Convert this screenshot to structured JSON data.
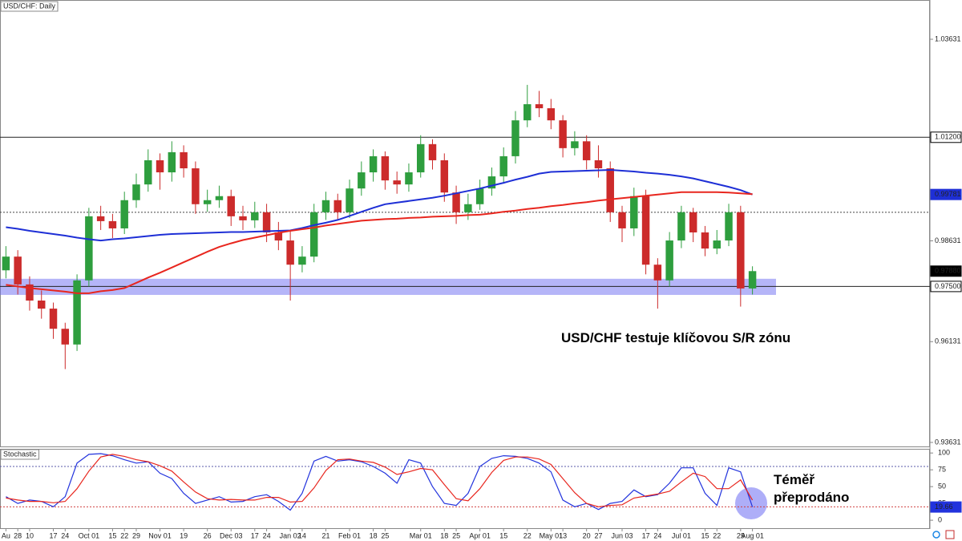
{
  "chart_data": [
    {
      "type": "candlestick",
      "title": "USD/CHF: Daily",
      "categories": [
        "Au",
        "28",
        "10",
        null,
        "17",
        "24",
        null,
        "Oct 01",
        null,
        "15",
        "22",
        "29",
        null,
        "Nov 01",
        null,
        "19",
        null,
        "26",
        null,
        "Dec 03",
        null,
        "17",
        "24",
        null,
        "Jan 02",
        "14",
        null,
        "21",
        null,
        "Feb 01",
        null,
        "18",
        "25",
        null,
        null,
        "Mar 01",
        null,
        "18",
        "25",
        null,
        "Apr 01",
        null,
        "15",
        null,
        "22",
        null,
        "May 01",
        "13",
        null,
        "20",
        "27",
        null,
        "Jun 03",
        null,
        "17",
        "24",
        null,
        "Jul 01",
        null,
        "15",
        "22",
        null,
        "29",
        "Aug 01"
      ],
      "open": [
        0.979,
        0.9824,
        0.9755,
        0.9715,
        0.9695,
        0.9645,
        0.9606,
        0.9765,
        0.9924,
        0.9912,
        0.9894,
        0.9964,
        1.0003,
        1.0063,
        1.0033,
        1.0083,
        1.0043,
        0.9954,
        0.9964,
        0.9974,
        0.9924,
        0.9914,
        0.9934,
        0.9884,
        0.9864,
        0.9804,
        0.9824,
        0.9934,
        0.9964,
        0.9934,
        0.9993,
        1.0033,
        1.0073,
        1.0013,
        1.0003,
        1.0033,
        1.0103,
        1.0063,
        0.9983,
        0.9934,
        0.9954,
        0.9993,
        1.0023,
        1.0073,
        1.0162,
        1.0202,
        1.0192,
        1.0162,
        1.0093,
        1.011,
        1.0063,
        1.0043,
        0.9934,
        0.9894,
        0.9974,
        0.9804,
        0.9765,
        0.9864,
        0.9934,
        0.9884,
        0.9844,
        0.9864,
        0.9934,
        0.9745
      ],
      "high": [
        0.985,
        0.984,
        0.9775,
        0.974,
        0.971,
        0.966,
        0.978,
        0.9945,
        0.995,
        0.993,
        0.9985,
        1.003,
        1.009,
        1.008,
        1.011,
        1.01,
        1.006,
        0.999,
        1.0,
        0.999,
        0.995,
        0.996,
        0.9955,
        0.991,
        0.989,
        0.985,
        0.9955,
        0.9985,
        0.998,
        1.0015,
        1.006,
        1.009,
        1.0085,
        1.0035,
        1.0055,
        1.0125,
        1.0115,
        1.008,
        1.0,
        0.998,
        1.0015,
        1.0045,
        1.0095,
        1.0185,
        1.025,
        1.0235,
        1.0215,
        1.0175,
        1.0135,
        1.0125,
        1.01,
        1.006,
        0.995,
        0.9995,
        0.999,
        0.982,
        0.9885,
        0.995,
        0.9945,
        0.99,
        0.989,
        0.9955,
        0.995,
        0.98
      ],
      "low": [
        0.977,
        0.973,
        0.969,
        0.967,
        0.962,
        0.9545,
        0.959,
        0.975,
        0.989,
        0.987,
        0.988,
        0.9945,
        0.9985,
        0.999,
        1.001,
        1.002,
        0.993,
        0.9935,
        0.9945,
        0.99,
        0.989,
        0.9895,
        0.986,
        0.984,
        0.9715,
        0.9785,
        0.981,
        0.9915,
        0.9915,
        0.992,
        0.9975,
        1.001,
        0.999,
        0.998,
        0.9985,
        1.002,
        1.004,
        0.996,
        0.9905,
        0.9915,
        0.994,
        0.9975,
        1.0005,
        1.0055,
        1.0145,
        1.017,
        1.014,
        1.007,
        1.0075,
        1.004,
        1.002,
        0.991,
        0.986,
        0.9875,
        0.978,
        0.9695,
        0.975,
        0.9845,
        0.986,
        0.9825,
        0.983,
        0.985,
        0.97,
        0.973
      ],
      "close": [
        0.9824,
        0.9755,
        0.9715,
        0.9695,
        0.9645,
        0.9606,
        0.9765,
        0.9924,
        0.9912,
        0.9894,
        0.9964,
        1.0003,
        1.0063,
        1.0033,
        1.0083,
        1.0043,
        0.9954,
        0.9964,
        0.9974,
        0.9924,
        0.9914,
        0.9934,
        0.9884,
        0.9864,
        0.9804,
        0.9824,
        0.9934,
        0.9964,
        0.9934,
        0.9993,
        1.0033,
        1.0073,
        1.0013,
        1.0003,
        1.0033,
        1.0103,
        1.0063,
        0.9983,
        0.9934,
        0.9954,
        0.9993,
        1.0023,
        1.0073,
        1.0162,
        1.0202,
        1.0192,
        1.0162,
        1.0093,
        1.011,
        1.0063,
        1.0043,
        0.9934,
        0.9894,
        0.9974,
        0.9804,
        0.9765,
        0.9864,
        0.9934,
        0.9884,
        0.9844,
        0.9864,
        0.9934,
        0.9745,
        0.9788
      ],
      "close_label": "0.97880",
      "up_color": "#2e9e3e",
      "down_color": "#cc2b2b",
      "lines": [
        {
          "color": "#1e2fd6",
          "last_label": "0.99781",
          "values": [
            0.9897,
            0.9893,
            0.9888,
            0.9884,
            0.988,
            0.9876,
            0.9871,
            0.9867,
            0.9864,
            0.9867,
            0.9869,
            0.9872,
            0.9875,
            0.9878,
            0.988,
            0.9881,
            0.9882,
            0.9883,
            0.9884,
            0.9885,
            0.9885,
            0.9886,
            0.9887,
            0.9888,
            0.9889,
            0.9895,
            0.9902,
            0.9908,
            0.9915,
            0.9925,
            0.9935,
            0.9945,
            0.9954,
            0.9958,
            0.9962,
            0.9966,
            0.997,
            0.9975,
            0.9981,
            0.9987,
            0.9993,
            1.0,
            1.0007,
            1.0015,
            1.0022,
            1.003,
            1.0034,
            1.0035,
            1.0036,
            1.0037,
            1.0038,
            1.0039,
            1.0037,
            1.0035,
            1.0032,
            1.003,
            1.0027,
            1.0023,
            1.0018,
            1.0011,
            1.0004,
            0.9997,
            0.9989,
            0.99781
          ]
        },
        {
          "color": "#e8261e",
          "values": [
            0.9754,
            0.975,
            0.9746,
            0.9743,
            0.974,
            0.9737,
            0.9733,
            0.9733,
            0.9738,
            0.9741,
            0.9746,
            0.9759,
            0.9772,
            0.9784,
            0.9797,
            0.981,
            0.9823,
            0.9836,
            0.9848,
            0.9857,
            0.9865,
            0.9871,
            0.9877,
            0.9883,
            0.9888,
            0.9892,
            0.9896,
            0.9901,
            0.9905,
            0.9909,
            0.9913,
            0.9915,
            0.9917,
            0.9918,
            0.992,
            0.9921,
            0.9923,
            0.9924,
            0.9925,
            0.9927,
            0.9928,
            0.9931,
            0.9935,
            0.9938,
            0.9942,
            0.9945,
            0.9949,
            0.9952,
            0.9956,
            0.9959,
            0.9963,
            0.9966,
            0.9969,
            0.9972,
            0.9975,
            0.9978,
            0.9981,
            0.9984,
            0.9984,
            0.9984,
            0.9984,
            0.9983,
            0.9981,
            0.9979
          ]
        }
      ],
      "levels": [
        {
          "value": 1.012,
          "label": "1.01200",
          "style": "solid"
        },
        {
          "value": 0.975,
          "label": "0.97500",
          "style": "solid"
        },
        {
          "value": 0.9934,
          "style": "dotted"
        }
      ],
      "zone": [
        0.9729,
        0.9769
      ],
      "zone_color": "#6b6bf2",
      "ylim": [
        0.93512,
        1.04605
      ],
      "yticks": [
        {
          "value": 1.03631,
          "label": "1.03631"
        },
        {
          "value": 0.98631,
          "label": "0.98631"
        },
        {
          "value": 0.96131,
          "label": "0.96131"
        },
        {
          "value": 0.93631,
          "label": "0.93631"
        }
      ],
      "annotation": "USD/CHF testuje klíčovou S/R zónu"
    },
    {
      "type": "line",
      "title": "Stochastic",
      "series": [
        {
          "color": "#2233dd",
          "values": [
            35,
            25,
            30,
            28,
            20,
            35,
            85,
            98,
            99,
            96,
            90,
            85,
            87,
            70,
            62,
            40,
            25,
            30,
            35,
            27,
            28,
            35,
            38,
            28,
            15,
            40,
            88,
            95,
            88,
            90,
            87,
            80,
            70,
            55,
            90,
            85,
            50,
            25,
            22,
            40,
            80,
            92,
            96,
            95,
            92,
            85,
            72,
            30,
            20,
            25,
            16,
            25,
            28,
            45,
            35,
            38,
            55,
            78,
            78,
            40,
            22,
            78,
            72,
            19.66
          ]
        },
        {
          "color": "#e8261e",
          "values": [
            33,
            30,
            28,
            28,
            26,
            28,
            47,
            73,
            94,
            98,
            95,
            90,
            87,
            81,
            73,
            57,
            42,
            32,
            30,
            31,
            30,
            30,
            34,
            34,
            27,
            28,
            48,
            74,
            90,
            91,
            88,
            86,
            79,
            68,
            72,
            77,
            75,
            53,
            32,
            29,
            47,
            71,
            89,
            94,
            94,
            91,
            83,
            62,
            41,
            25,
            20,
            22,
            23,
            33,
            36,
            39,
            43,
            57,
            70,
            65,
            47,
            47,
            60,
            30
          ]
        }
      ],
      "levels": [
        {
          "value": 80,
          "color": "#5a5aa8"
        },
        {
          "value": 20,
          "color": "#d04040"
        }
      ],
      "ylim": [
        -13,
        105
      ],
      "yticks": [
        0,
        25,
        50,
        75,
        100
      ],
      "annotation": [
        "Téměř",
        "přeprodáno"
      ]
    }
  ]
}
